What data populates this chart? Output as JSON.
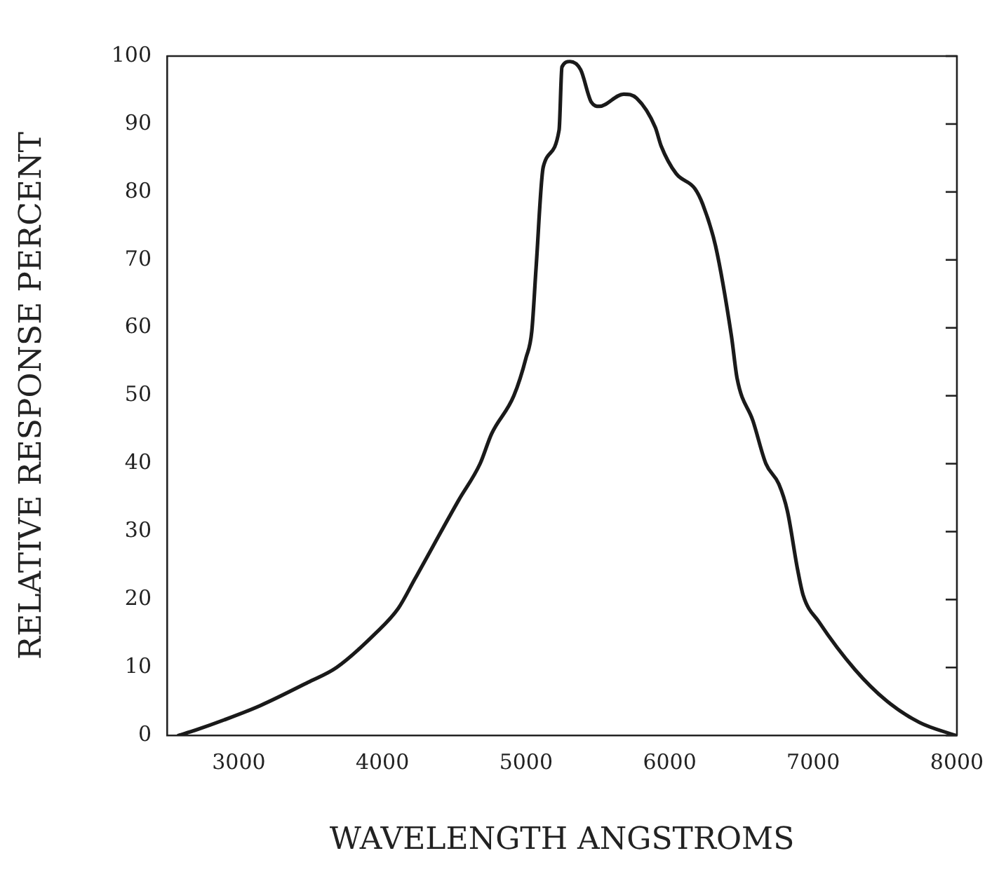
{
  "chart_data": {
    "type": "line",
    "xlabel": "WAVELENGTH ANGSTROMS",
    "ylabel": "RELATIVE RESPONSE PERCENT",
    "xlim": [
      2500,
      8000
    ],
    "ylim": [
      0,
      100
    ],
    "xticks": [
      3000,
      4000,
      5000,
      6000,
      7000,
      8000
    ],
    "yticks": [
      0,
      10,
      20,
      30,
      40,
      50,
      60,
      70,
      80,
      90,
      100
    ],
    "grid": false,
    "legend": false,
    "marker": "none",
    "line_style": "solid",
    "series": [
      {
        "color": "#1a1a1a",
        "x": [
          2580,
          2700,
          2900,
          3150,
          3480,
          3680,
          3950,
          4110,
          4225,
          4530,
          4680,
          4760,
          4915,
          5000,
          5040,
          5070,
          5120,
          5230,
          5250,
          5305,
          5380,
          5455,
          5510,
          5680,
          5770,
          5900,
          5940,
          6045,
          6175,
          6230,
          6320,
          6430,
          6470,
          6580,
          6670,
          6760,
          6820,
          6890,
          6930,
          7040,
          7290,
          7510,
          7740,
          7990
        ],
        "values": [
          0,
          0.8,
          2.3,
          4.4,
          7.8,
          10,
          15,
          18.7,
          23,
          34.6,
          40,
          44.4,
          50,
          55.6,
          59.5,
          68.9,
          83.7,
          89.1,
          98.4,
          99.2,
          98,
          93.2,
          92.6,
          94.4,
          93.8,
          89.5,
          86.8,
          82.7,
          80.5,
          78.2,
          72,
          58.8,
          52.5,
          46.3,
          40,
          37,
          33,
          24.5,
          20.6,
          16.7,
          9.7,
          5.1,
          1.9,
          0
        ]
      }
    ]
  }
}
